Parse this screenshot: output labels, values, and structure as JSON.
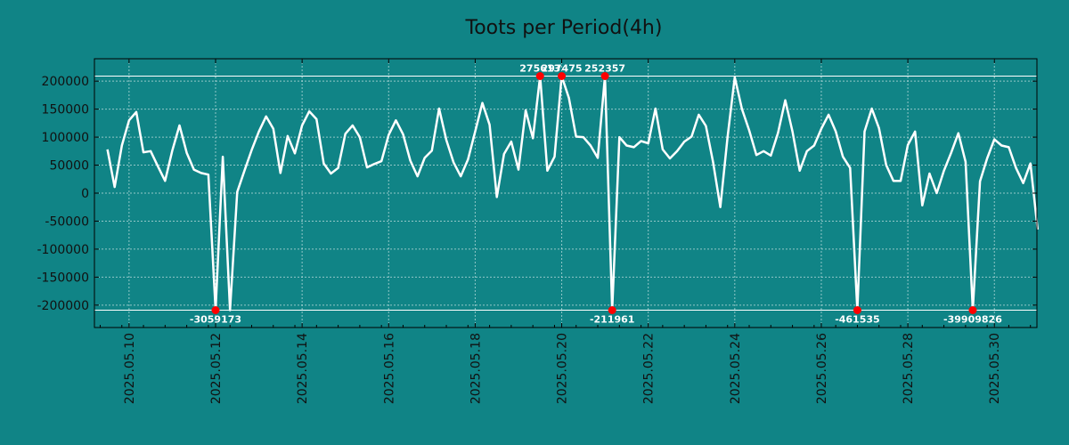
{
  "chart_data": {
    "type": "line",
    "title": "Toots per Period(4h)",
    "xlabel": "",
    "ylabel": "",
    "grid": true,
    "colors": {
      "background": "#108486",
      "line": "#ffffff",
      "marker": "#ff0000",
      "text": "#111111",
      "label": "#ffffff"
    },
    "xlim": [
      -1.8,
      128.9
    ],
    "ylim": [
      -240000,
      240000
    ],
    "yticks": [
      200000,
      150000,
      100000,
      50000,
      0,
      -50000,
      -100000,
      -150000,
      -200000
    ],
    "ytick_labels": [
      "200000",
      "150000",
      "100000",
      "50000",
      "0",
      "-50000",
      "-100000",
      "-150000",
      "-200000"
    ],
    "xticks": [
      {
        "pos": 3,
        "label": "2025.05.10"
      },
      {
        "pos": 15,
        "label": "2025.05.12"
      },
      {
        "pos": 27,
        "label": "2025.05.14"
      },
      {
        "pos": 39,
        "label": "2025.05.16"
      },
      {
        "pos": 51,
        "label": "2025.05.18"
      },
      {
        "pos": 63,
        "label": "2025.05.20"
      },
      {
        "pos": 75,
        "label": "2025.05.22"
      },
      {
        "pos": 87,
        "label": "2025.05.24"
      },
      {
        "pos": 99,
        "label": "2025.05.26"
      },
      {
        "pos": 111,
        "label": "2025.05.28"
      },
      {
        "pos": 123,
        "label": "2025.05.30"
      }
    ],
    "clip_lines": [
      209000,
      -209000
    ],
    "series": [
      {
        "values": [
          78000,
          11000,
          85000,
          130000,
          145000,
          73000,
          75000,
          48000,
          22000,
          76000,
          121000,
          72000,
          42000,
          36000,
          33000,
          -209000,
          65000,
          -209000,
          2000,
          40000,
          77000,
          110000,
          137000,
          115000,
          36000,
          102000,
          71000,
          121000,
          146000,
          132000,
          53000,
          35000,
          45000,
          106000,
          121000,
          100000,
          46000,
          52000,
          57000,
          104000,
          130000,
          105000,
          58000,
          30000,
          63000,
          76000,
          151000,
          95000,
          55000,
          30000,
          60000,
          110000,
          161000,
          122000,
          -7000,
          70000,
          92000,
          42000,
          148000,
          98000,
          209000,
          40000,
          65000,
          209000,
          170000,
          101000,
          100000,
          85000,
          63000,
          209000,
          -209000,
          100000,
          85000,
          82000,
          93000,
          89000,
          151000,
          78000,
          62000,
          75000,
          92000,
          101000,
          140000,
          120000,
          55000,
          -25000,
          100000,
          207000,
          150000,
          112000,
          68000,
          75000,
          67000,
          108000,
          166000,
          110000,
          40000,
          75000,
          85000,
          115000,
          140000,
          110000,
          65000,
          45000,
          -209000,
          110000,
          151000,
          116000,
          50000,
          22000,
          22000,
          86000,
          110000,
          -22000,
          35000,
          0,
          40000,
          72000,
          107000,
          56000,
          -209000,
          21000,
          62000,
          96000,
          85000,
          82000,
          45000,
          18000,
          53000,
          -65000
        ]
      }
    ],
    "markers": [
      {
        "index": 15,
        "label": "-3059173"
      },
      {
        "index": 60,
        "label": "275613"
      },
      {
        "index": 63,
        "label": "297475"
      },
      {
        "index": 69,
        "label": "252357"
      },
      {
        "index": 70,
        "label": "-211961"
      },
      {
        "index": 104,
        "label": "-461535"
      },
      {
        "index": 120,
        "label": "-39909826"
      }
    ]
  }
}
